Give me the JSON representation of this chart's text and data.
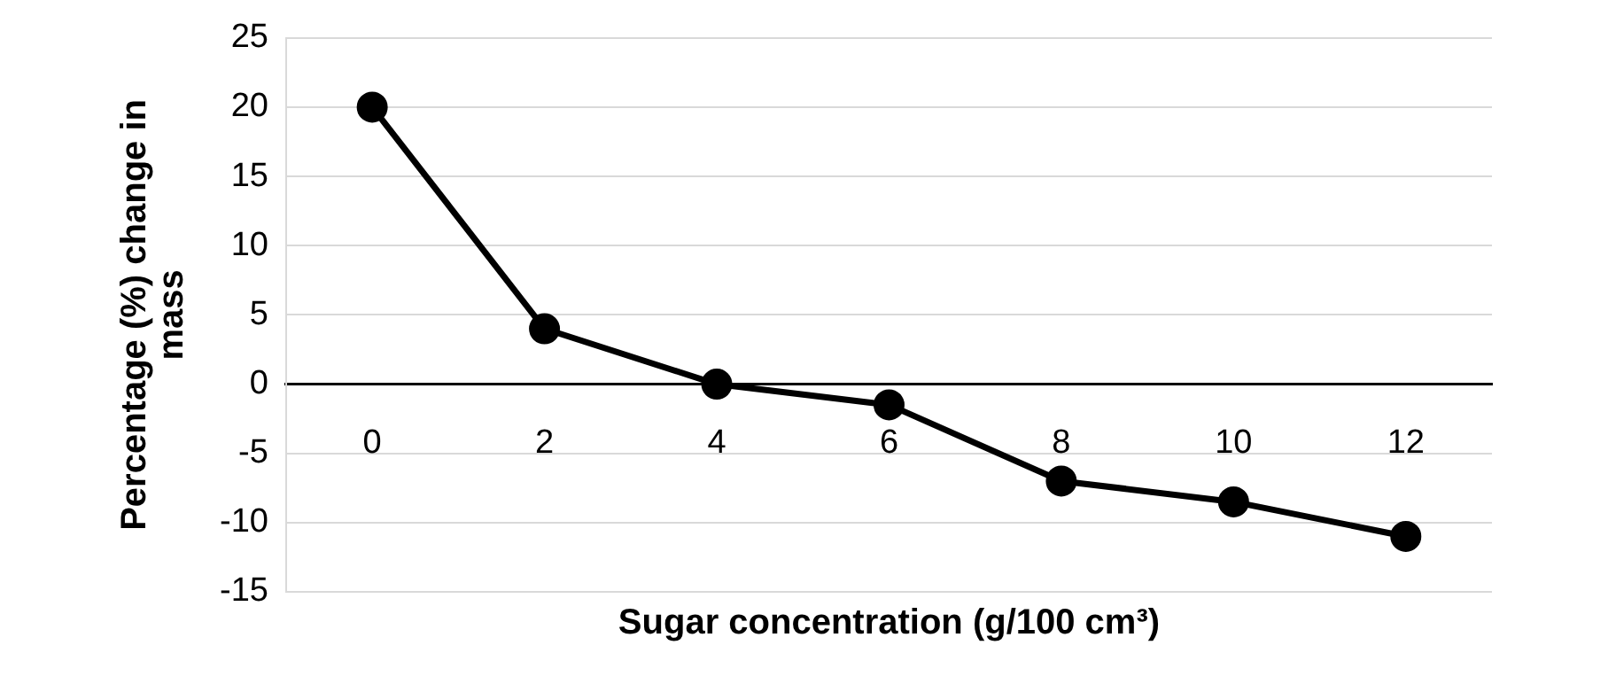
{
  "chart_data": {
    "type": "line",
    "xlabel": "Sugar concentration (g/100 cm³)",
    "ylabel": "Percentage (%) change in mass",
    "categories": [
      "0",
      "2",
      "4",
      "6",
      "8",
      "10",
      "12"
    ],
    "series": [
      {
        "color": "#000000",
        "values": [
          20,
          4,
          0,
          -1.5,
          -7,
          -8.5,
          -11
        ]
      }
    ],
    "ylim": [
      -15,
      25
    ],
    "yticks": [
      -15,
      -10,
      -5,
      0,
      5,
      10,
      15,
      20,
      25
    ],
    "grid": "y",
    "legend": false,
    "marker": "circle",
    "line_style": "solid"
  }
}
